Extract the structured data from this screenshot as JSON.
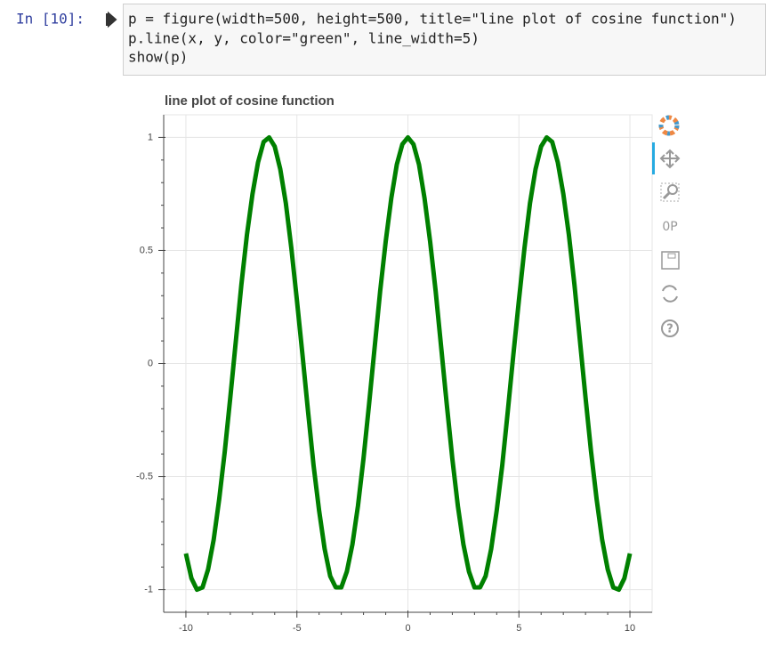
{
  "prompt": "In [10]:",
  "code": [
    "p = figure(width=500, height=500, title=\"line plot of cosine function\")",
    "p.line(x, y, color=\"green\", line_width=5)",
    "show(p)"
  ],
  "chart_data": {
    "type": "line",
    "title": "line plot of cosine function",
    "x": [
      -10,
      -9.75,
      -9.5,
      -9.25,
      -9,
      -8.75,
      -8.5,
      -8.25,
      -8,
      -7.75,
      -7.5,
      -7.25,
      -7,
      -6.75,
      -6.5,
      -6.25,
      -6,
      -5.75,
      -5.5,
      -5.25,
      -5,
      -4.75,
      -4.5,
      -4.25,
      -4,
      -3.75,
      -3.5,
      -3.25,
      -3,
      -2.75,
      -2.5,
      -2.25,
      -2,
      -1.75,
      -1.5,
      -1.25,
      -1,
      -0.75,
      -0.5,
      -0.25,
      0,
      0.25,
      0.5,
      0.75,
      1,
      1.25,
      1.5,
      1.75,
      2,
      2.25,
      2.5,
      2.75,
      3,
      3.25,
      3.5,
      3.75,
      4,
      4.25,
      4.5,
      4.75,
      5,
      5.25,
      5.5,
      5.75,
      6,
      6.25,
      6.5,
      6.75,
      7,
      7.25,
      7.5,
      7.75,
      8,
      8.25,
      8.5,
      8.75,
      9,
      9.25,
      9.5,
      9.75,
      10
    ],
    "series": [
      {
        "color": "#008000",
        "line_width": 5,
        "values": [
          -0.84,
          -0.95,
          -1.0,
          -0.99,
          -0.91,
          -0.78,
          -0.6,
          -0.39,
          -0.15,
          0.1,
          0.35,
          0.57,
          0.75,
          0.89,
          0.98,
          1.0,
          0.96,
          0.86,
          0.71,
          0.51,
          0.28,
          0.04,
          -0.21,
          -0.45,
          -0.65,
          -0.82,
          -0.94,
          -0.99,
          -0.99,
          -0.92,
          -0.8,
          -0.63,
          -0.42,
          -0.18,
          0.07,
          0.32,
          0.54,
          0.73,
          0.88,
          0.97,
          1,
          0.97,
          0.88,
          0.73,
          0.54,
          0.32,
          0.07,
          -0.18,
          -0.42,
          -0.63,
          -0.8,
          -0.92,
          -0.99,
          -0.99,
          -0.94,
          -0.82,
          -0.65,
          -0.45,
          -0.21,
          0.04,
          0.28,
          0.51,
          0.71,
          0.86,
          0.96,
          1.0,
          0.98,
          0.89,
          0.75,
          0.57,
          0.35,
          0.1,
          -0.15,
          -0.39,
          -0.6,
          -0.78,
          -0.91,
          -0.99,
          -1.0,
          -0.95,
          -0.84
        ]
      }
    ],
    "xlim": [
      -11,
      11
    ],
    "ylim": [
      -1.1,
      1.1
    ],
    "xticks": [
      -10,
      -5,
      0,
      5,
      10
    ],
    "yticks": [
      -1,
      -0.5,
      0,
      0.5,
      1
    ],
    "grid": true
  }
}
